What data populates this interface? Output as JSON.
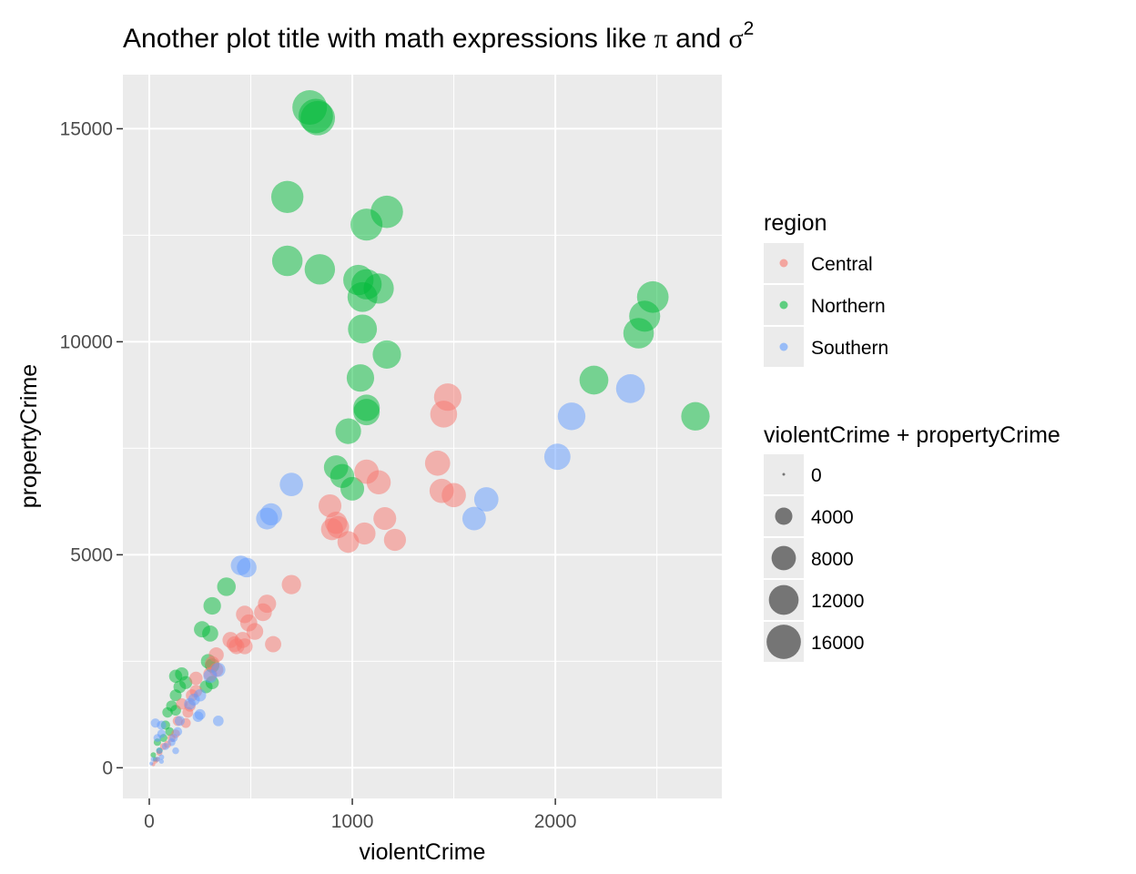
{
  "chart_data": {
    "type": "scatter",
    "title": {
      "main": "Another plot title with math expressions like ",
      "pi": "π",
      "and": " and ",
      "sigma": "σ",
      "sup": "2"
    },
    "xlabel": "violentCrime",
    "ylabel": "propertyCrime",
    "xlim": [
      -130,
      2820
    ],
    "ylim": [
      -720,
      16270
    ],
    "x_ticks": [
      0,
      1000,
      2000
    ],
    "y_ticks": [
      0,
      5000,
      10000,
      15000
    ],
    "x_tick_labels": [
      "0",
      "1000",
      "2000"
    ],
    "y_tick_labels": [
      "0",
      "5000",
      "10000",
      "15000"
    ],
    "grid": true,
    "legend_placement": "right",
    "colors": {
      "panel": "#EBEBEB",
      "grid": "#FFFFFF",
      "Central": "#F8766D",
      "Northern": "#00BA38",
      "Southern": "#619CFF",
      "size_key": "#000000"
    },
    "color_legend": {
      "title": "region",
      "entries": [
        "Central",
        "Northern",
        "Southern"
      ]
    },
    "size_legend": {
      "title": "violentCrime + propertyCrime",
      "breaks": [
        0,
        4000,
        8000,
        12000,
        16000
      ],
      "labels": [
        "0",
        "4000",
        "8000",
        "12000",
        "16000"
      ]
    },
    "series": [
      {
        "name": "Northern",
        "points": [
          [
            790,
            15500
          ],
          [
            820,
            15300
          ],
          [
            830,
            15250
          ],
          [
            680,
            13400
          ],
          [
            1070,
            12750
          ],
          [
            1170,
            13050
          ],
          [
            680,
            11900
          ],
          [
            840,
            11700
          ],
          [
            1030,
            11450
          ],
          [
            1070,
            11350
          ],
          [
            1130,
            11250
          ],
          [
            1050,
            11050
          ],
          [
            1050,
            10300
          ],
          [
            1170,
            9700
          ],
          [
            1040,
            9150
          ],
          [
            1070,
            8450
          ],
          [
            1070,
            8350
          ],
          [
            980,
            7900
          ],
          [
            920,
            7050
          ],
          [
            950,
            6850
          ],
          [
            1000,
            6550
          ],
          [
            2480,
            11050
          ],
          [
            2440,
            10600
          ],
          [
            2410,
            10200
          ],
          [
            2190,
            9100
          ],
          [
            2690,
            8250
          ],
          [
            380,
            4250
          ],
          [
            310,
            3800
          ],
          [
            260,
            3250
          ],
          [
            300,
            3150
          ],
          [
            290,
            2500
          ],
          [
            310,
            2400
          ],
          [
            310,
            2000
          ],
          [
            280,
            1900
          ],
          [
            130,
            2150
          ],
          [
            160,
            2200
          ],
          [
            150,
            1900
          ],
          [
            180,
            2000
          ],
          [
            130,
            1700
          ],
          [
            110,
            1450
          ],
          [
            90,
            1300
          ],
          [
            130,
            1350
          ],
          [
            80,
            1000
          ],
          [
            100,
            850
          ],
          [
            70,
            700
          ],
          [
            40,
            600
          ],
          [
            50,
            400
          ],
          [
            20,
            300
          ],
          [
            30,
            200
          ]
        ]
      },
      {
        "name": "Central",
        "points": [
          [
            1470,
            8700
          ],
          [
            1450,
            8300
          ],
          [
            1420,
            7150
          ],
          [
            1440,
            6500
          ],
          [
            1500,
            6400
          ],
          [
            1070,
            6950
          ],
          [
            1130,
            6700
          ],
          [
            890,
            6150
          ],
          [
            920,
            5750
          ],
          [
            930,
            5650
          ],
          [
            900,
            5600
          ],
          [
            980,
            5300
          ],
          [
            1060,
            5500
          ],
          [
            1160,
            5850
          ],
          [
            1210,
            5350
          ],
          [
            700,
            4300
          ],
          [
            610,
            2900
          ],
          [
            580,
            3850
          ],
          [
            560,
            3650
          ],
          [
            470,
            3600
          ],
          [
            490,
            3400
          ],
          [
            520,
            3200
          ],
          [
            460,
            3000
          ],
          [
            430,
            2850
          ],
          [
            470,
            2850
          ],
          [
            400,
            3000
          ],
          [
            420,
            2900
          ],
          [
            330,
            2650
          ],
          [
            330,
            2300
          ],
          [
            310,
            2450
          ],
          [
            300,
            2200
          ],
          [
            230,
            2100
          ],
          [
            230,
            1800
          ],
          [
            210,
            1700
          ],
          [
            200,
            1450
          ],
          [
            160,
            1500
          ],
          [
            190,
            1300
          ],
          [
            180,
            1050
          ],
          [
            140,
            1100
          ],
          [
            130,
            800
          ],
          [
            110,
            700
          ],
          [
            90,
            550
          ],
          [
            70,
            500
          ],
          [
            50,
            350
          ],
          [
            40,
            200
          ],
          [
            30,
            150
          ],
          [
            20,
            80
          ]
        ]
      },
      {
        "name": "Southern",
        "points": [
          [
            700,
            6650
          ],
          [
            600,
            5950
          ],
          [
            580,
            5850
          ],
          [
            450,
            4750
          ],
          [
            480,
            4700
          ],
          [
            2370,
            8900
          ],
          [
            2080,
            8250
          ],
          [
            2010,
            7300
          ],
          [
            1660,
            6300
          ],
          [
            1600,
            5850
          ],
          [
            340,
            2300
          ],
          [
            300,
            2150
          ],
          [
            340,
            1100
          ],
          [
            250,
            1700
          ],
          [
            220,
            1600
          ],
          [
            200,
            1500
          ],
          [
            250,
            1250
          ],
          [
            240,
            1200
          ],
          [
            150,
            1100
          ],
          [
            140,
            850
          ],
          [
            120,
            700
          ],
          [
            110,
            600
          ],
          [
            60,
            1000
          ],
          [
            30,
            1050
          ],
          [
            60,
            800
          ],
          [
            40,
            700
          ],
          [
            80,
            500
          ],
          [
            50,
            400
          ],
          [
            130,
            400
          ],
          [
            60,
            250
          ],
          [
            40,
            200
          ],
          [
            20,
            200
          ],
          [
            60,
            150
          ],
          [
            10,
            100
          ]
        ]
      }
    ]
  }
}
